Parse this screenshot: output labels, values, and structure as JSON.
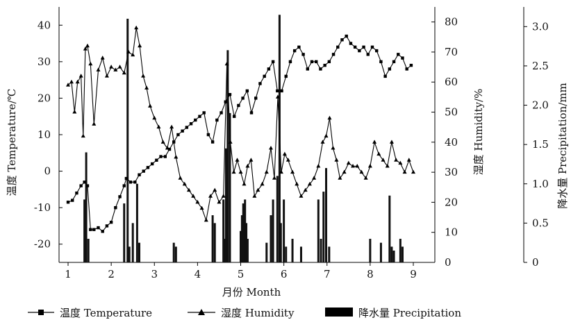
{
  "chart_data": {
    "type": "line",
    "xlabel": "月份 Month",
    "x_ticks": [
      "1",
      "2",
      "3",
      "4",
      "5",
      "6",
      "7",
      "8",
      "9"
    ],
    "xlim": [
      1,
      9.5
    ],
    "axes": {
      "temperature": {
        "label": "温度 Temperature/℃",
        "ylim": [
          -25,
          45
        ],
        "ticks": [
          "-20",
          "-10",
          "0",
          "10",
          "20",
          "30",
          "40"
        ]
      },
      "humidity": {
        "label": "湿度 Humidity/%",
        "ylim": [
          0,
          85
        ],
        "ticks": [
          "0",
          "10",
          "20",
          "30",
          "40",
          "50",
          "60",
          "70",
          "80"
        ]
      },
      "precipitation": {
        "label": "降水量 Precipitation/mm",
        "ylim": [
          0,
          3.25
        ],
        "ticks": [
          "0",
          "0.5",
          "1.0",
          "1.5",
          "2.0",
          "2.5",
          "3.0"
        ]
      }
    },
    "legend": {
      "position": "bottom",
      "items": [
        "温度 Temperature",
        "湿度 Humidity",
        "降水量 Precipitation"
      ]
    },
    "series": [
      {
        "name": "温度 Temperature",
        "axis": "temperature",
        "marker": "square",
        "x": [
          1.0,
          1.1,
          1.2,
          1.3,
          1.38,
          1.45,
          1.52,
          1.6,
          1.7,
          1.8,
          1.9,
          2.0,
          2.1,
          2.2,
          2.3,
          2.35,
          2.45,
          2.55,
          2.65,
          2.75,
          2.85,
          2.95,
          3.05,
          3.15,
          3.25,
          3.35,
          3.45,
          3.55,
          3.65,
          3.75,
          3.85,
          3.95,
          4.05,
          4.15,
          4.25,
          4.35,
          4.45,
          4.55,
          4.65,
          4.75,
          4.85,
          4.95,
          5.05,
          5.15,
          5.25,
          5.35,
          5.45,
          5.55,
          5.65,
          5.75,
          5.85,
          5.95,
          6.05,
          6.15,
          6.25,
          6.35,
          6.45,
          6.55,
          6.65,
          6.75,
          6.85,
          6.95,
          7.05,
          7.15,
          7.25,
          7.35,
          7.45,
          7.55,
          7.65,
          7.75,
          7.85,
          7.95,
          8.05,
          8.15,
          8.25,
          8.35,
          8.45,
          8.55,
          8.65,
          8.75,
          8.85,
          8.95
        ],
        "y": [
          -8.5,
          -8,
          -6,
          -4,
          -3,
          -4,
          -16,
          -16,
          -15.5,
          -16.5,
          -15,
          -14,
          -10,
          -7,
          -4,
          -2,
          -3,
          -3,
          -1,
          0,
          1,
          2,
          3,
          4,
          4,
          6,
          8,
          10,
          11,
          12,
          13,
          14,
          15,
          16,
          10,
          8,
          14,
          16,
          19,
          21,
          15,
          18,
          20,
          22,
          16,
          20,
          24,
          26,
          28,
          30,
          22,
          22,
          26,
          30,
          33,
          34,
          32,
          28,
          30,
          30,
          28,
          29,
          30,
          32,
          34,
          36,
          37,
          35,
          34,
          33,
          34,
          32,
          34,
          33,
          30,
          26,
          28,
          30,
          32,
          31,
          28,
          29
        ]
      },
      {
        "name": "湿度 Humidity",
        "axis": "humidity",
        "marker": "triangle",
        "x": [
          1.0,
          1.08,
          1.15,
          1.22,
          1.3,
          1.35,
          1.4,
          1.45,
          1.52,
          1.6,
          1.7,
          1.8,
          1.9,
          2.0,
          2.1,
          2.2,
          2.3,
          2.4,
          2.5,
          2.58,
          2.66,
          2.74,
          2.82,
          2.9,
          3.0,
          3.1,
          3.2,
          3.3,
          3.4,
          3.5,
          3.6,
          3.7,
          3.8,
          3.9,
          4.0,
          4.1,
          4.2,
          4.3,
          4.4,
          4.5,
          4.6,
          4.68,
          4.76,
          4.84,
          4.92,
          5.0,
          5.08,
          5.16,
          5.24,
          5.32,
          5.4,
          5.5,
          5.6,
          5.7,
          5.78,
          5.86,
          5.94,
          6.02,
          6.1,
          6.2,
          6.3,
          6.4,
          6.5,
          6.6,
          6.7,
          6.8,
          6.9,
          6.98,
          7.06,
          7.14,
          7.22,
          7.3,
          7.4,
          7.5,
          7.6,
          7.7,
          7.8,
          7.9,
          8.0,
          8.1,
          8.2,
          8.3,
          8.4,
          8.5,
          8.6,
          8.7,
          8.8,
          8.9,
          9.0
        ],
        "y": [
          59,
          60,
          50,
          60,
          62,
          42,
          71,
          72,
          66,
          46,
          64,
          68,
          62,
          65,
          64,
          65,
          63,
          70,
          69,
          78,
          72,
          62,
          58,
          52,
          48,
          45,
          40,
          38,
          45,
          35,
          28,
          26,
          24,
          22,
          20,
          18,
          14,
          22,
          24,
          20,
          22,
          66,
          40,
          30,
          34,
          30,
          26,
          32,
          34,
          22,
          24,
          26,
          30,
          38,
          28,
          55,
          30,
          36,
          34,
          30,
          26,
          22,
          24,
          26,
          28,
          32,
          40,
          42,
          48,
          38,
          34,
          28,
          30,
          33,
          32,
          32,
          30,
          28,
          32,
          40,
          36,
          34,
          32,
          40,
          34,
          33,
          30,
          34,
          30
        ]
      },
      {
        "name": "降水量 Precipitation",
        "axis": "precipitation",
        "type": "bar",
        "x": [
          1.38,
          1.42,
          1.47,
          2.3,
          2.38,
          2.42,
          2.5,
          2.6,
          2.65,
          3.45,
          3.5,
          4.35,
          4.4,
          4.6,
          4.63,
          4.66,
          4.7,
          4.75,
          5.0,
          5.03,
          5.06,
          5.1,
          5.13,
          5.16,
          5.6,
          5.7,
          5.75,
          5.85,
          5.9,
          5.93,
          6.0,
          6.05,
          6.2,
          6.4,
          6.8,
          6.86,
          6.92,
          6.98,
          7.05,
          8.0,
          8.25,
          8.45,
          8.5,
          8.55,
          8.7,
          8.75
        ],
        "values": [
          0.8,
          1.4,
          0.3,
          0.75,
          3.1,
          0.2,
          0.5,
          1.0,
          0.25,
          0.25,
          0.2,
          0.6,
          0.5,
          0.8,
          0.3,
          1.45,
          2.7,
          1.9,
          0.4,
          0.6,
          0.75,
          0.8,
          0.5,
          0.3,
          0.25,
          0.6,
          0.8,
          1.1,
          3.15,
          0.5,
          0.8,
          0.2,
          0.3,
          0.2,
          0.8,
          0.3,
          0.9,
          1.2,
          0.2,
          0.3,
          0.25,
          0.85,
          0.2,
          0.15,
          0.3,
          0.2
        ]
      }
    ]
  }
}
